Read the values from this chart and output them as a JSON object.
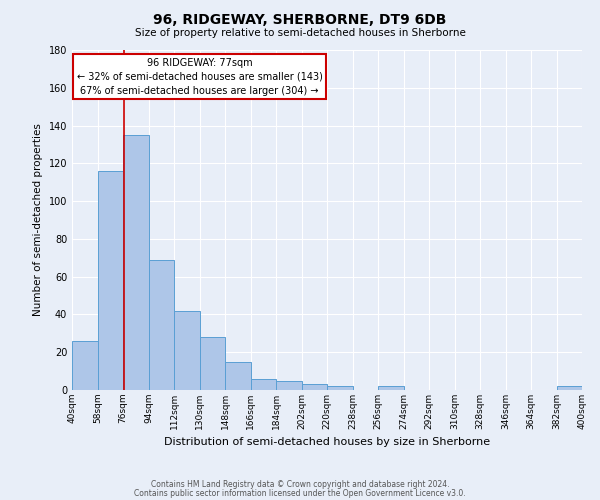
{
  "title": "96, RIDGEWAY, SHERBORNE, DT9 6DB",
  "subtitle": "Size of property relative to semi-detached houses in Sherborne",
  "xlabel": "Distribution of semi-detached houses by size in Sherborne",
  "ylabel": "Number of semi-detached properties",
  "bin_edges": [
    40,
    58,
    76,
    94,
    112,
    130,
    148,
    166,
    184,
    202,
    220,
    238,
    256,
    274,
    292,
    310,
    328,
    346,
    364,
    382,
    400
  ],
  "bar_heights": [
    26,
    116,
    135,
    69,
    42,
    28,
    15,
    6,
    5,
    3,
    2,
    0,
    2,
    0,
    0,
    0,
    0,
    0,
    0,
    2
  ],
  "bar_color": "#aec6e8",
  "bar_edgecolor": "#5a9fd4",
  "background_color": "#e8eef8",
  "grid_color": "#ffffff",
  "property_line_x": 77,
  "property_line_color": "#cc0000",
  "annotation_title": "96 RIDGEWAY: 77sqm",
  "annotation_line1": "← 32% of semi-detached houses are smaller (143)",
  "annotation_line2": "67% of semi-detached houses are larger (304) →",
  "annotation_box_color": "#ffffff",
  "annotation_box_edgecolor": "#cc0000",
  "ylim": [
    0,
    180
  ],
  "yticks": [
    0,
    20,
    40,
    60,
    80,
    100,
    120,
    140,
    160,
    180
  ],
  "footer_line1": "Contains HM Land Registry data © Crown copyright and database right 2024.",
  "footer_line2": "Contains public sector information licensed under the Open Government Licence v3.0."
}
